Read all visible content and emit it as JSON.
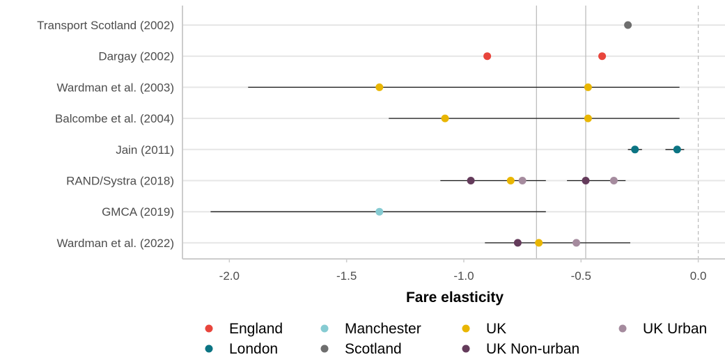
{
  "chart_data": {
    "type": "scatter",
    "xlabel": "Fare elasticity",
    "ylabel": "",
    "xlim": [
      -2.2,
      0.12
    ],
    "x_ticks": [
      -2.0,
      -1.5,
      -1.0,
      -0.5,
      0.0
    ],
    "x_tick_labels": [
      "-2.0",
      "-1.5",
      "-1.0",
      "-0.5",
      "0.0"
    ],
    "reference_lines": {
      "solid": [
        -0.69,
        -0.48
      ],
      "dashed": [
        0.0
      ]
    },
    "grid": true,
    "legend_position": "bottom",
    "colors": {
      "England": "#e8453c",
      "Manchester": "#86cbd2",
      "UK": "#e9b602",
      "UK Urban": "#a58b9e",
      "London": "#0b7483",
      "Scotland": "#6e6e6e",
      "UK Non-urban": "#643b5b",
      "whisker": "#1a1a1a",
      "grid": "#e6e6e6",
      "axis": "#cccccc",
      "refline": "#bdbdbd"
    },
    "legend": [
      [
        "England",
        "Manchester",
        "UK",
        "UK Urban"
      ],
      [
        "London",
        "Scotland",
        "UK Non-urban"
      ]
    ],
    "studies": [
      {
        "name": "Transport Scotland (2002)",
        "points": [
          {
            "group": "Scotland",
            "x": -0.3
          }
        ]
      },
      {
        "name": "Dargay (2002)",
        "points": [
          {
            "group": "England",
            "x": -0.9
          },
          {
            "group": "England",
            "x": -0.41
          }
        ]
      },
      {
        "name": "Wardman et al. (2003)",
        "points": [
          {
            "group": "UK",
            "x": -1.36,
            "lo": -1.92,
            "hi": -0.08
          },
          {
            "group": "UK",
            "x": -0.47,
            "lo": -1.92,
            "hi": -0.08
          }
        ]
      },
      {
        "name": "Balcombe et al.  (2004)",
        "points": [
          {
            "group": "UK",
            "x": -1.08,
            "lo": -1.32,
            "hi": -0.08
          },
          {
            "group": "UK",
            "x": -0.47,
            "lo": -1.32,
            "hi": -0.08
          }
        ]
      },
      {
        "name": "Jain (2011)",
        "points": [
          {
            "group": "London",
            "x": -0.27,
            "lo": -0.3,
            "hi": -0.24
          },
          {
            "group": "London",
            "x": -0.09,
            "lo": -0.14,
            "hi": -0.06
          }
        ]
      },
      {
        "name": "RAND/Systra (2018)",
        "points": [
          {
            "group": "UK Non-urban",
            "x": -0.97,
            "lo": -1.1,
            "hi": -0.65
          },
          {
            "group": "UK",
            "x": -0.8,
            "lo": -1.1,
            "hi": -0.65
          },
          {
            "group": "UK Urban",
            "x": -0.75,
            "lo": -1.1,
            "hi": -0.65
          },
          {
            "group": "UK Non-urban",
            "x": -0.48,
            "lo": -0.56,
            "hi": -0.31
          },
          {
            "group": "UK Urban",
            "x": -0.36,
            "lo": -0.56,
            "hi": -0.31
          }
        ]
      },
      {
        "name": "GMCA (2019)",
        "points": [
          {
            "group": "Manchester",
            "x": -1.36,
            "lo": -2.08,
            "hi": -0.65
          }
        ]
      },
      {
        "name": "Wardman et al. (2022)",
        "points": [
          {
            "group": "UK Non-urban",
            "x": -0.77,
            "lo": -0.91,
            "hi": -0.29
          },
          {
            "group": "UK",
            "x": -0.68,
            "lo": -0.91,
            "hi": -0.29
          },
          {
            "group": "UK Urban",
            "x": -0.52,
            "lo": -0.91,
            "hi": -0.29
          }
        ]
      }
    ]
  }
}
